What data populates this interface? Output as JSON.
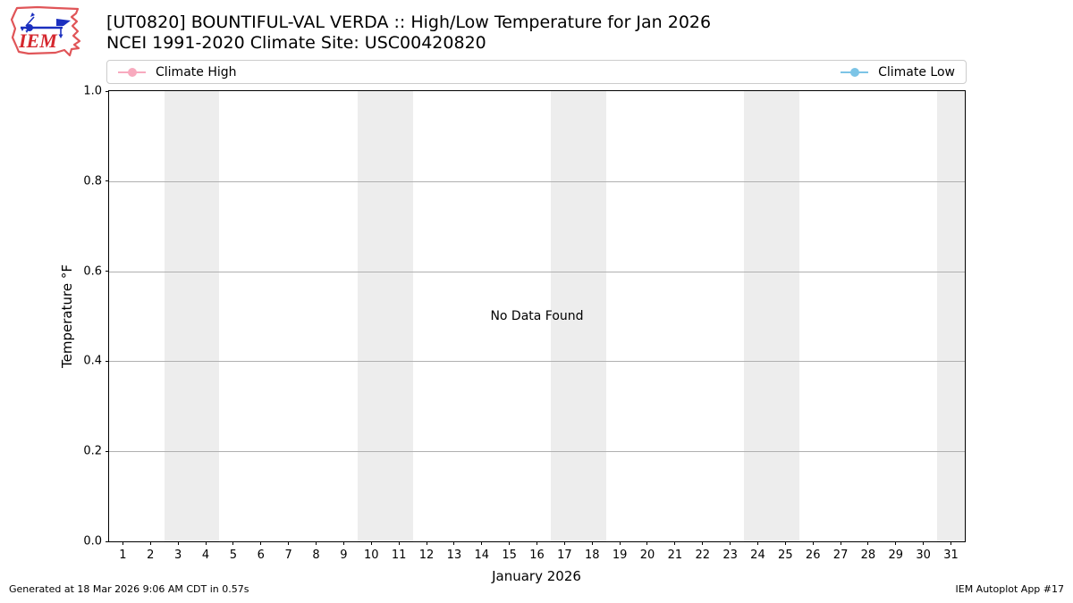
{
  "header": {
    "title": "[UT0820] BOUNTIFUL-VAL VERDA :: High/Low Temperature for Jan 2026",
    "subtitle": "NCEI 1991-2020 Climate Site: USC00420820",
    "logo_text": "IEM"
  },
  "chart_data": {
    "type": "line",
    "title": "[UT0820] BOUNTIFUL-VAL VERDA :: High/Low Temperature for Jan 2026",
    "subtitle": "NCEI 1991-2020 Climate Site: USC00420820",
    "annotation": "No Data Found",
    "xlabel": "January 2026",
    "ylabel": "Temperature °F",
    "xlim": [
      0.5,
      31.5
    ],
    "ylim": [
      0.0,
      1.0
    ],
    "grid": true,
    "legend_position": "top-expand",
    "series": [
      {
        "name": "Climate High",
        "color": "#f8aabe",
        "x": [],
        "values": []
      },
      {
        "name": "Climate Low",
        "color": "#7cc4e6",
        "x": [],
        "values": []
      }
    ],
    "x_ticks": [
      1,
      2,
      3,
      4,
      5,
      6,
      7,
      8,
      9,
      10,
      11,
      12,
      13,
      14,
      15,
      16,
      17,
      18,
      19,
      20,
      21,
      22,
      23,
      24,
      25,
      26,
      27,
      28,
      29,
      30,
      31
    ],
    "y_ticks": [
      {
        "label": "0.0",
        "value": 0.0
      },
      {
        "label": "0.2",
        "value": 0.2
      },
      {
        "label": "0.4",
        "value": 0.4
      },
      {
        "label": "0.6",
        "value": 0.6
      },
      {
        "label": "0.8",
        "value": 0.8
      },
      {
        "label": "1.0",
        "value": 1.0
      }
    ],
    "weekend_bands": [
      [
        2.5,
        4.5
      ],
      [
        9.5,
        11.5
      ],
      [
        16.5,
        18.5
      ],
      [
        23.5,
        25.5
      ],
      [
        30.5,
        31.5
      ]
    ],
    "band_color": "#ededed",
    "gridline_color": "#b0b0b0"
  },
  "footer": {
    "left": "Generated at 18 Mar 2026 9:06 AM CDT in 0.57s",
    "right": "IEM Autoplot App #17"
  }
}
